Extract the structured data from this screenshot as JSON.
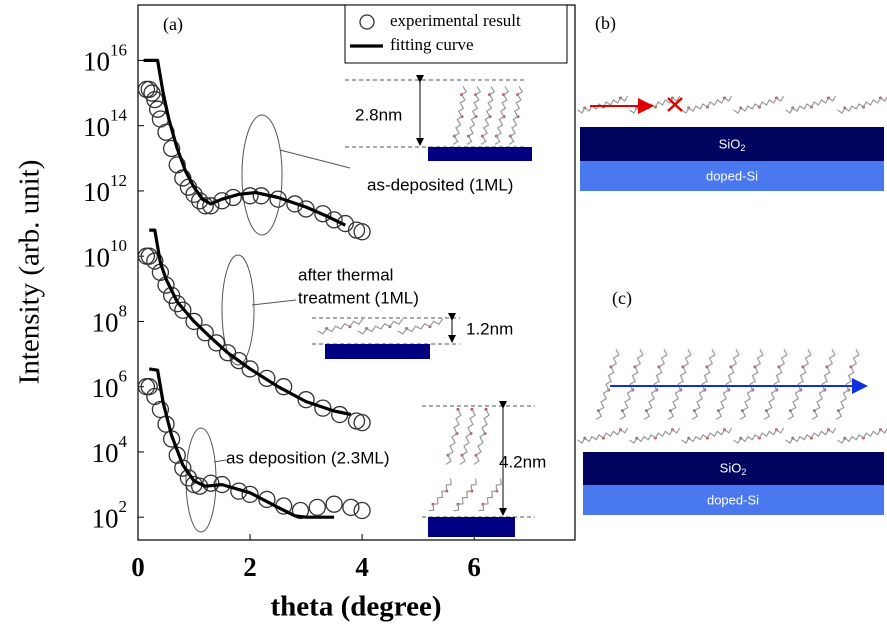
{
  "chart_data": {
    "type": "scatter",
    "panel_label": "(a)",
    "xlabel": "theta (degree)",
    "ylabel": "Intensity (arb. unit)",
    "xlim": [
      0,
      7.8
    ],
    "xticks": [
      0,
      2,
      4,
      6
    ],
    "yscale": "log",
    "ylim": [
      20,
      5e+17
    ],
    "yticks": [
      {
        "value": 100,
        "label": "10^2"
      },
      {
        "value": 10000,
        "label": "10^4"
      },
      {
        "value": 1000000,
        "label": "10^6"
      },
      {
        "value": 100000000,
        "label": "10^8"
      },
      {
        "value": 10000000000,
        "label": "10^10"
      },
      {
        "value": 1000000000000,
        "label": "10^12"
      },
      {
        "value": 100000000000000,
        "label": "10^14"
      },
      {
        "value": 10000000000000000,
        "label": "10^16"
      }
    ],
    "grid": false,
    "legend": "upper right",
    "series": [
      {
        "name": "experimental result",
        "marker": "circle",
        "color": "#333333",
        "x": [
          0.15,
          0.2,
          0.25,
          0.3,
          0.35,
          0.4,
          0.5,
          0.6,
          0.7,
          0.8,
          0.9,
          1.0,
          1.1,
          1.2,
          1.3,
          1.5,
          1.7,
          2.0,
          2.2,
          2.5,
          2.8,
          3.0,
          3.3,
          3.5,
          3.7,
          3.9,
          4.0
        ],
        "values": [
          1300000000000000.0,
          1300000000000000.0,
          1000000000000000.0,
          630000000000000.0,
          320000000000000.0,
          160000000000000.0,
          63000000000000.0,
          20000000000000.0,
          6300000000000.0,
          2500000000000.0,
          1300000000000.0,
          790000000000.0,
          500000000000.0,
          350000000000.0,
          350000000000.0,
          500000000000.0,
          630000000000.0,
          710000000000.0,
          710000000000.0,
          560000000000.0,
          400000000000.0,
          280000000000.0,
          200000000000.0,
          130000000000.0,
          100000000000.0,
          63000000000.0,
          56000000000.0
        ]
      },
      {
        "name": "fitting curve",
        "marker": "line",
        "color": "#000000",
        "x": [
          0.1,
          0.35,
          0.45,
          0.55,
          0.7,
          0.85,
          1.0,
          1.15,
          1.3,
          1.5,
          1.8,
          2.1,
          2.5,
          3.0,
          3.4,
          3.7
        ],
        "values": [
          1e+16,
          1e+16,
          1000000000000000.0,
          160000000000000.0,
          20000000000000.0,
          4000000000000.0,
          1300000000000.0,
          560000000000.0,
          400000000000.0,
          560000000000.0,
          790000000000.0,
          890000000000.0,
          630000000000.0,
          320000000000.0,
          160000000000.0,
          89000000000.0
        ]
      },
      {
        "marker": "circle",
        "color": "#333333",
        "x": [
          0.15,
          0.2,
          0.3,
          0.4,
          0.5,
          0.6,
          0.7,
          0.8,
          1.0,
          1.2,
          1.4,
          1.6,
          1.8,
          2.0,
          2.3,
          2.6,
          3.0,
          3.3,
          3.6,
          3.9,
          4.0
        ],
        "values": [
          10000000000.0,
          10000000000.0,
          7100000000.0,
          3200000000.0,
          1300000000.0,
          630000000.0,
          350000000.0,
          220000000.0,
          100000000.0,
          45000000.0,
          22000000.0,
          11000000.0,
          6300000.0,
          3500000.0,
          1800000.0,
          1000000.0,
          400000.0,
          220000.0,
          140000.0,
          89000.0,
          79000.0
        ]
      },
      {
        "marker": "line",
        "color": "#000000",
        "x": [
          0.2,
          0.3,
          0.4,
          0.5,
          0.7,
          1.0,
          1.3,
          1.6,
          2.0,
          2.5,
          3.0,
          3.5,
          3.8
        ],
        "values": [
          63000000000.0,
          63000000000.0,
          6300000000.0,
          2000000000.0,
          400000000.0,
          100000000.0,
          32000000.0,
          11000000.0,
          3500000.0,
          1000000.0,
          350000.0,
          180000.0,
          140000.0
        ]
      },
      {
        "marker": "circle",
        "color": "#333333",
        "x": [
          0.15,
          0.2,
          0.3,
          0.4,
          0.5,
          0.6,
          0.7,
          0.8,
          0.9,
          1.0,
          1.1,
          1.3,
          1.5,
          1.8,
          2.0,
          2.3,
          2.6,
          2.9,
          3.2,
          3.5,
          3.8,
          4.0
        ],
        "values": [
          1000000.0,
          1000000.0,
          500000.0,
          200000.0,
          71000.0,
          25000.0,
          7900.0,
          3200.0,
          1600.0,
          1000.0,
          890,
          1100,
          1000,
          630,
          500,
          350,
          220,
          160,
          200,
          250,
          200,
          160
        ]
      },
      {
        "marker": "line",
        "color": "#000000",
        "x": [
          0.2,
          0.35,
          0.45,
          0.6,
          0.8,
          1.0,
          1.2,
          1.5,
          2.0,
          2.5,
          2.8,
          3.0,
          3.5
        ],
        "values": [
          3500000.0,
          3200000.0,
          320000.0,
          32000.0,
          4000.0,
          1300.0,
          890,
          1000,
          560,
          200,
          110,
          100,
          100
        ]
      }
    ],
    "annotations": [
      "as-deposited (1ML)",
      "after thermal",
      "treatment  (1ML)",
      "as deposition (2.3ML)",
      "2.8nm",
      "1.2nm",
      "4.2nm"
    ]
  },
  "panels": [
    {
      "label": "(b)",
      "layers": [
        "SiO2",
        "doped-Si"
      ]
    },
    {
      "label": "(c)",
      "layers": [
        "SiO2",
        "doped-Si"
      ]
    }
  ]
}
